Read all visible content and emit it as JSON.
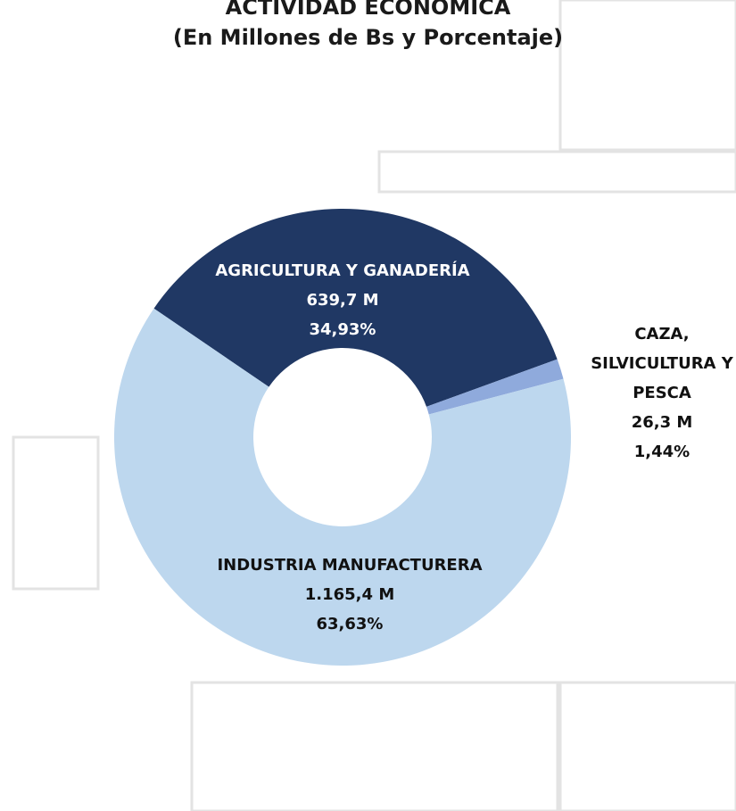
{
  "chart_data": {
    "type": "donut",
    "title": "ACTIVIDAD ECONÓMICA",
    "subtitle": "(En Millones de Bs y Porcentaje)",
    "categories": [
      "AGRICULTURA Y GANADERÍA",
      "CAZA, SILVICULTURA Y PESCA",
      "INDUSTRIA MANUFACTURERA"
    ],
    "values": [
      639.7,
      26.3,
      1165.4
    ],
    "value_labels": [
      "639,7 M",
      "26,3 M",
      "1.165,4 M"
    ],
    "percentages": [
      34.93,
      1.44,
      63.63
    ],
    "percentage_labels": [
      "34,93%",
      "1,44%",
      "63,63%"
    ],
    "colors": [
      "#203864",
      "#8faadc",
      "#bdd7ee"
    ]
  }
}
